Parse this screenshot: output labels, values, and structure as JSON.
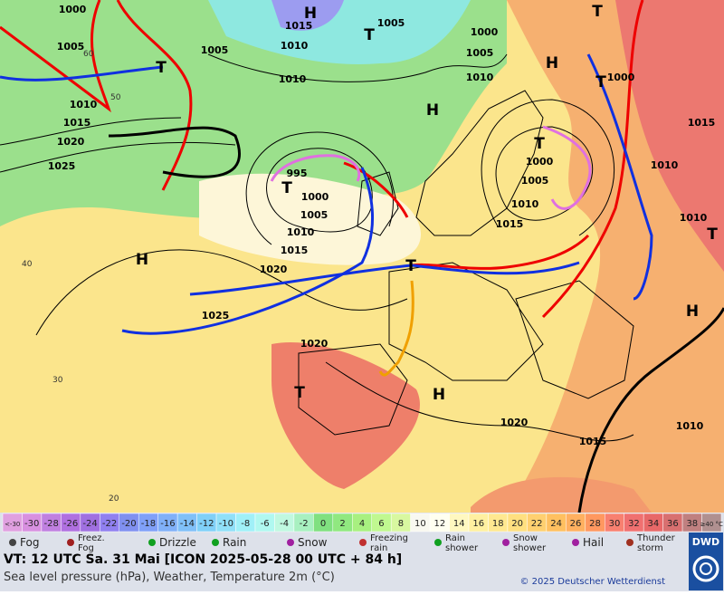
{
  "map": {
    "pressure_labels": [
      "1000",
      "1005",
      "1010",
      "1015",
      "1020",
      "1025",
      "1015",
      "1010",
      "1005",
      "1005",
      "1000",
      "1005",
      "1010",
      "1010",
      "995",
      "1000",
      "1005",
      "1010",
      "1015",
      "1020",
      "1025",
      "1020",
      "1000",
      "1005",
      "1010",
      "1015",
      "1000",
      "1015",
      "1010",
      "1010",
      "1020",
      "1015",
      "1010"
    ],
    "centers": [
      "H",
      "H",
      "H",
      "H",
      "H",
      "H",
      "T",
      "T",
      "T",
      "T",
      "T",
      "T",
      "T",
      "T",
      "T"
    ],
    "lat_labels": [
      "60",
      "50",
      "40",
      "30",
      "20"
    ]
  },
  "scale": {
    "labels": [
      "<-30",
      "-30",
      "-28",
      "-26",
      "-24",
      "-22",
      "-20",
      "-18",
      "-16",
      "-14",
      "-12",
      "-10",
      "-8",
      "-6",
      "-4",
      "-2",
      "0",
      "2",
      "4",
      "6",
      "8",
      "10",
      "12",
      "14",
      "16",
      "18",
      "20",
      "22",
      "24",
      "26",
      "28",
      "30",
      "32",
      "34",
      "36",
      "38",
      "≥40 °C"
    ]
  },
  "legend": [
    {
      "label": [
        "Fog"
      ]
    },
    {
      "label": [
        "Freez.",
        "Fog"
      ]
    },
    {
      "label": [
        "Drizzle"
      ]
    },
    {
      "label": [
        "Rain"
      ]
    },
    {
      "label": [
        "Snow"
      ]
    },
    {
      "label": [
        "Freezing",
        "rain"
      ]
    },
    {
      "label": [
        "Rain",
        "shower"
      ]
    },
    {
      "label": [
        "Snow",
        "shower"
      ]
    },
    {
      "label": [
        "Hail"
      ]
    },
    {
      "label": [
        "Thunder",
        "storm"
      ]
    }
  ],
  "footer": {
    "valid_time": "VT: 12 UTC Sa.  31 Mai [ICON 2025-05-28  00 UTC + 84 h]",
    "description": "Sea level pressure (hPa), Weather, Temperature 2m (°C)",
    "copyright": "© 2025 Deutscher Wetterdienst",
    "logo": "DWD"
  }
}
